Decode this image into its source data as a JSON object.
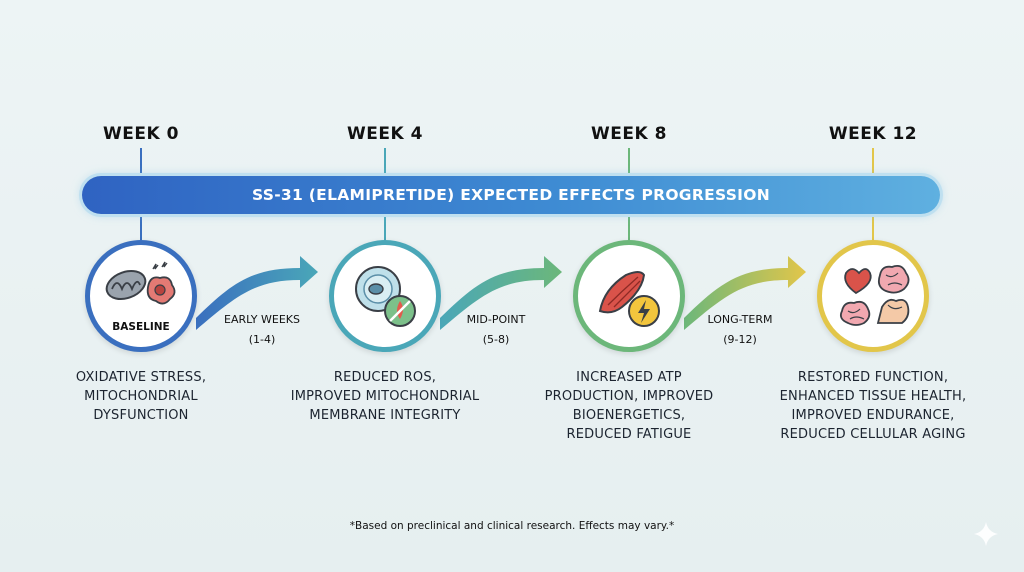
{
  "banner": {
    "title": "SS-31 (ELAMIPRETIDE) EXPECTED EFFECTS PROGRESSION"
  },
  "weeks": [
    {
      "label": "WEEK 0",
      "color": "#3a6fbf"
    },
    {
      "label": "WEEK 4",
      "color": "#4aa7b8"
    },
    {
      "label": "WEEK 8",
      "color": "#6cb77a"
    },
    {
      "label": "WEEK 12",
      "color": "#e2c64a"
    }
  ],
  "milestones": [
    {
      "circle_label": "BASELINE",
      "ring_color": "#3a6fbf",
      "icons": [
        "mitochondrion-icon",
        "stressed-cell-icon"
      ],
      "desc": [
        "OXIDATIVE STRESS,",
        "MITOCHONDRIAL",
        "DYSFUNCTION"
      ]
    },
    {
      "circle_label": "",
      "ring_color": "#4aa7b8",
      "icons": [
        "cell-icon",
        "ros-blocked-icon"
      ],
      "desc": [
        "REDUCED ROS,",
        "IMPROVED MITOCHONDRIAL",
        "MEMBRANE INTEGRITY"
      ]
    },
    {
      "circle_label": "",
      "ring_color": "#6cb77a",
      "icons": [
        "muscle-icon",
        "energy-bolt-icon"
      ],
      "desc": [
        "INCREASED ATP",
        "PRODUCTION, IMPROVED",
        "BIOENERGETICS,",
        "REDUCED FATIGUE"
      ]
    },
    {
      "circle_label": "",
      "ring_color": "#e2c64a",
      "icons": [
        "heart-icon",
        "brain-icon",
        "brain-icon",
        "flexed-arm-icon"
      ],
      "desc": [
        "RESTORED FUNCTION,",
        "ENHANCED TISSUE HEALTH,",
        "IMPROVED ENDURANCE,",
        "REDUCED CELLULAR AGING"
      ]
    }
  ],
  "phases": [
    {
      "line1": "EARLY WEEKS",
      "line2": "(1-4)"
    },
    {
      "line1": "MID-POINT",
      "line2": "(5-8)"
    },
    {
      "line1": "LONG-TERM",
      "line2": "(9-12)"
    }
  ],
  "footnote": "*Based on preclinical and clinical research. Effects may vary.*"
}
